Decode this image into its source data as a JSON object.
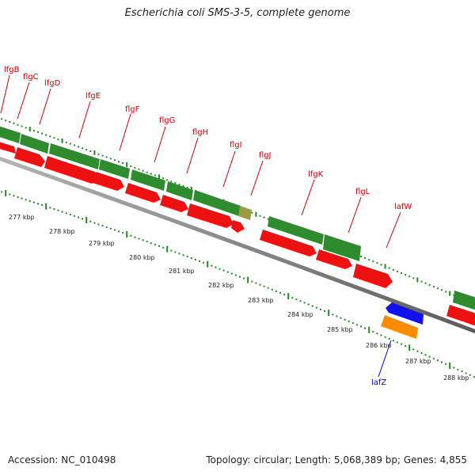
{
  "title": "Escherichia coli SMS-3-5, complete genome",
  "footer": {
    "accession": "Accession: NC_010498",
    "summary": "Topology: circular; Length: 5,068,389 bp; Genes: 4,855"
  },
  "colors": {
    "green": "#2e8b2e",
    "red": "#ee1111",
    "blue": "#1111ee",
    "orange": "#ff8c00",
    "olive": "#9a9a44",
    "backbone": "#808080",
    "tick": "#228822",
    "label_red": "#cc0000",
    "label_blue": "#0000cc"
  },
  "scale_labels": [
    "277 kbp",
    "278 kbp",
    "279 kbp",
    "280 kbp",
    "281 kbp",
    "282 kbp",
    "283 kbp",
    "284 kbp",
    "285 kbp",
    "286 kbp",
    "287 kbp",
    "288 kbp"
  ],
  "gene_labels": [
    {
      "text": "lfgB",
      "color": "red"
    },
    {
      "text": "flgC",
      "color": "red"
    },
    {
      "text": "lfgD",
      "color": "red"
    },
    {
      "text": "lfgE",
      "color": "red"
    },
    {
      "text": "flgF",
      "color": "red"
    },
    {
      "text": "flgG",
      "color": "red"
    },
    {
      "text": "flgH",
      "color": "red"
    },
    {
      "text": "flgI",
      "color": "red"
    },
    {
      "text": "flgJ",
      "color": "red"
    },
    {
      "text": "lfgK",
      "color": "red"
    },
    {
      "text": "flgL",
      "color": "red"
    },
    {
      "text": "lafW",
      "color": "red"
    },
    {
      "text": "lafZ",
      "color": "blue"
    }
  ]
}
